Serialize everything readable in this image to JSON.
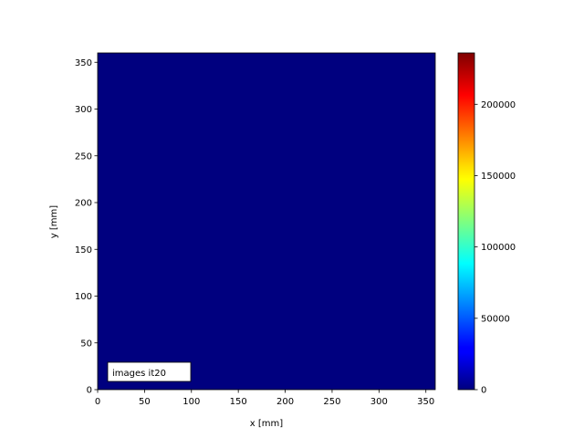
{
  "chart_data": {
    "type": "heatmap",
    "xlabel": "x [mm]",
    "ylabel": "y [mm]",
    "xlim": [
      0,
      360
    ],
    "ylim": [
      0,
      360
    ],
    "xticks": [
      0,
      50,
      100,
      150,
      200,
      250,
      300,
      350
    ],
    "yticks": [
      0,
      50,
      100,
      150,
      200,
      250,
      300,
      350
    ],
    "field_value": 0,
    "field_color": "#00007f",
    "annotation": "images it20",
    "colorbar": {
      "colormap": "jet",
      "range": [
        0,
        236000
      ],
      "ticks": [
        0,
        50000,
        100000,
        150000,
        200000
      ],
      "tick_labels": [
        "0",
        "50000",
        "100000",
        "150000",
        "200000"
      ]
    },
    "grid": false
  }
}
